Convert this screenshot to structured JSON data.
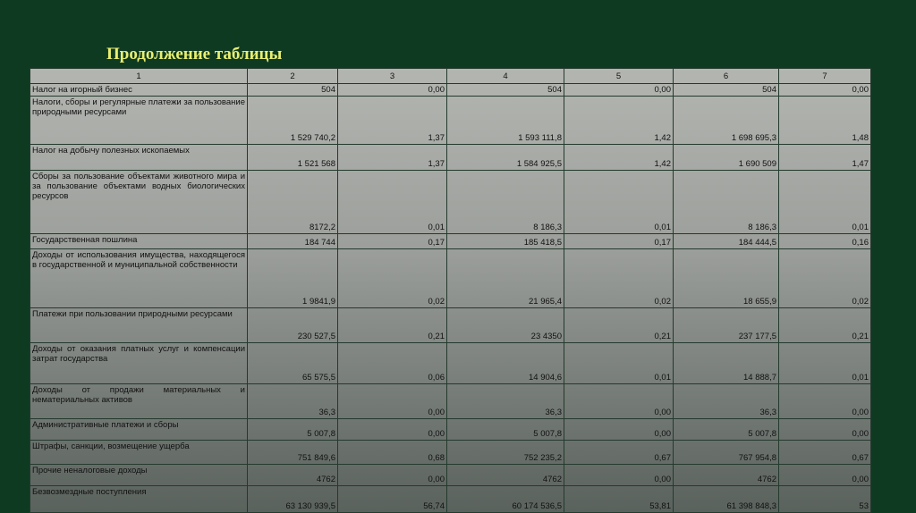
{
  "title": "Продолжение таблицы",
  "table": {
    "headers": [
      "1",
      "2",
      "3",
      "4",
      "5",
      "6",
      "7"
    ],
    "rows": [
      {
        "name": "Налог на игорный бизнес",
        "v": [
          "504",
          "0,00",
          "504",
          "0,00",
          "504",
          "0,00"
        ]
      },
      {
        "name": "Налоги, сборы и регулярные платежи за пользование природными ресурсами",
        "v": [
          "1 529 740,2",
          "1,37",
          "1 593 111,8",
          "1,42",
          "1 698 695,3",
          "1,48"
        ]
      },
      {
        "name": "Налог на добычу полезных ископаемых",
        "v": [
          "1 521 568",
          "1,37",
          "1 584 925,5",
          "1,42",
          "1 690 509",
          "1,47"
        ]
      },
      {
        "name": "Сборы за пользование объектами животного мира и за пользование объектами водных биологических ресурсов",
        "v": [
          "8172,2",
          "0,01",
          "8 186,3",
          "0,01",
          "8 186,3",
          "0,01"
        ]
      },
      {
        "name": "Государственная пошлина",
        "v": [
          "184 744",
          "0,17",
          "185 418,5",
          "0,17",
          "184 444,5",
          "0,16"
        ]
      },
      {
        "name": "Доходы от использования имущества, находящегося в государственной и муниципальной собственности",
        "v": [
          "1 9841,9",
          "0,02",
          "21 965,4",
          "0,02",
          "18 655,9",
          "0,02"
        ]
      },
      {
        "name": "Платежи при пользовании природными ресурсами",
        "v": [
          "230 527,5",
          "0,21",
          "23 4350",
          "0,21",
          "237 177,5",
          "0,21"
        ]
      },
      {
        "name": "Доходы от оказания платных услуг и компенсации затрат государства",
        "v": [
          "65 575,5",
          "0,06",
          "14 904,6",
          "0,01",
          "14 888,7",
          "0,01"
        ]
      },
      {
        "name": "Доходы от продажи материальных и нематериальных активов",
        "v": [
          "36,3",
          "0,00",
          "36,3",
          "0,00",
          "36,3",
          "0,00"
        ]
      },
      {
        "name": "Административные платежи и сборы",
        "v": [
          "5 007,8",
          "0,00",
          "5 007,8",
          "0,00",
          "5 007,8",
          "0,00"
        ]
      },
      {
        "name": "Штрафы, санкции, возмещение ущерба",
        "v": [
          "751 849,6",
          "0,68",
          "752 235,2",
          "0,67",
          "767 954,8",
          "0,67"
        ]
      },
      {
        "name": "Прочие неналоговые доходы",
        "v": [
          "4762",
          "0,00",
          "4762",
          "0,00",
          "4762",
          "0,00"
        ]
      },
      {
        "name": "Безвозмездные поступления",
        "v": [
          "63 130 939,5",
          "56,74",
          "60 174 536,5",
          "53,81",
          "61 398 848,3",
          "53"
        ]
      }
    ]
  }
}
